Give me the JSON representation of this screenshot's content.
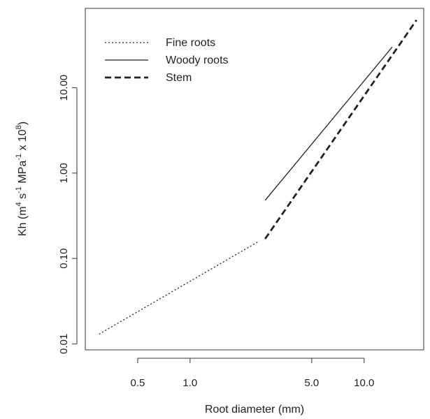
{
  "chart_data": {
    "type": "line",
    "title": "",
    "xlabel": "Root diameter    (mm)",
    "ylabel_parts": {
      "prefix": "Kh   (m",
      "sup1": "4",
      "mid1": " s",
      "sup2": "-1",
      "mid2": " MPa",
      "sup3": "-1",
      "mid3": " x 10",
      "sup4": "8",
      "suffix": ")"
    },
    "x_scale": "log",
    "y_scale": "log",
    "xlim": [
      0.25,
      22
    ],
    "ylim": [
      0.0085,
      85
    ],
    "x_ticks": [
      0.5,
      1.0,
      5.0,
      10.0
    ],
    "x_tick_labels": [
      "0.5",
      "1.0",
      "5.0",
      "10.0"
    ],
    "y_ticks": [
      0.01,
      0.1,
      1.0,
      10.0
    ],
    "y_tick_labels": [
      "0.01",
      "0.10",
      "1.00",
      "10.00"
    ],
    "grid": false,
    "legend_position": "top-left",
    "series": [
      {
        "name": "Fine roots",
        "style": "dotted",
        "color": "#222222",
        "x": [
          0.3,
          2.5
        ],
        "y": [
          0.013,
          0.16
        ]
      },
      {
        "name": "Woody roots",
        "style": "solid",
        "color": "#222222",
        "x": [
          2.7,
          14.5
        ],
        "y": [
          0.48,
          30
        ]
      },
      {
        "name": "Stem",
        "style": "dashed",
        "color": "#222222",
        "x": [
          2.7,
          20
        ],
        "y": [
          0.17,
          62
        ]
      }
    ]
  }
}
